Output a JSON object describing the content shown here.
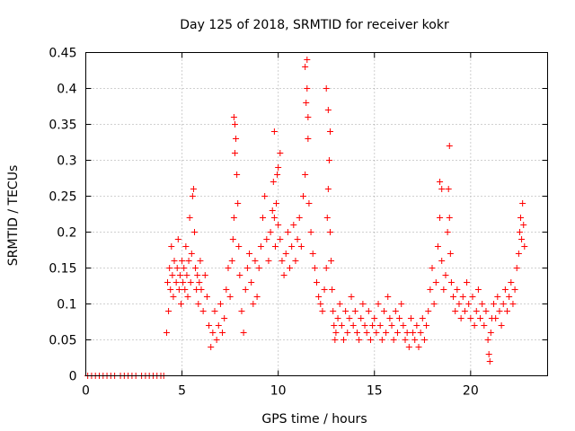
{
  "chart_data": {
    "type": "scatter",
    "title": "Day 125 of 2018, SRMTID for receiver kokr",
    "xlabel": "GPS time / hours",
    "ylabel": "SRMTID / TECUs",
    "xlim": [
      0,
      24
    ],
    "ylim": [
      0,
      0.45
    ],
    "xticks": [
      0,
      5,
      10,
      15,
      20
    ],
    "xtick_labels": [
      "0",
      "5",
      "10",
      "15",
      "20"
    ],
    "yticks": [
      0,
      0.05,
      0.1,
      0.15,
      0.2,
      0.25,
      0.3,
      0.35,
      0.4,
      0.45
    ],
    "ytick_labels": [
      "0",
      "0.05",
      "0.1",
      "0.15",
      "0.2",
      "0.25",
      "0.3",
      "0.35",
      "0.4",
      "0.45"
    ],
    "grid": true,
    "marker": "+",
    "color": "#ff0000",
    "series": [
      {
        "name": "SRMTID",
        "x": [
          0.1,
          0.3,
          0.5,
          0.7,
          0.9,
          1.1,
          1.3,
          1.5,
          1.8,
          2.0,
          2.2,
          2.4,
          2.6,
          2.9,
          3.1,
          3.3,
          3.5,
          3.7,
          3.9,
          4.05,
          4.2,
          4.25,
          4.3,
          4.35,
          4.4,
          4.45,
          4.5,
          4.55,
          4.6,
          4.7,
          4.75,
          4.8,
          4.85,
          4.9,
          4.95,
          5.0,
          5.05,
          5.1,
          5.15,
          5.2,
          5.25,
          5.3,
          5.35,
          5.4,
          5.45,
          5.5,
          5.55,
          5.6,
          5.65,
          5.7,
          5.75,
          5.8,
          5.85,
          5.9,
          5.95,
          6.0,
          6.1,
          6.2,
          6.3,
          6.4,
          6.5,
          6.6,
          6.7,
          6.8,
          6.9,
          7.0,
          7.1,
          7.2,
          7.3,
          7.4,
          7.5,
          7.6,
          7.65,
          7.7,
          7.75,
          7.8,
          7.85,
          7.9,
          7.95,
          8.0,
          8.1,
          8.2,
          8.3,
          8.4,
          8.5,
          8.6,
          8.7,
          8.8,
          8.9,
          9.0,
          9.1,
          9.2,
          9.3,
          9.4,
          9.5,
          9.6,
          9.7,
          9.75,
          9.8,
          9.85,
          9.9,
          9.95,
          10.0,
          10.1,
          10.2,
          10.3,
          10.4,
          10.5,
          10.6,
          10.7,
          10.8,
          10.9,
          11.0,
          11.1,
          11.2,
          11.3,
          11.4,
          11.45,
          11.5,
          11.55,
          11.6,
          11.7,
          11.8,
          11.9,
          12.0,
          12.1,
          12.2,
          12.3,
          12.4,
          12.5,
          12.55,
          12.6,
          12.65,
          12.7,
          12.75,
          12.8,
          12.85,
          12.9,
          12.95,
          13.0,
          13.1,
          13.2,
          13.3,
          13.4,
          13.5,
          13.6,
          13.7,
          13.8,
          13.9,
          14.0,
          14.1,
          14.2,
          14.3,
          14.4,
          14.5,
          14.6,
          14.7,
          14.8,
          14.9,
          15.0,
          15.1,
          15.2,
          15.3,
          15.4,
          15.5,
          15.6,
          15.7,
          15.8,
          15.9,
          16.0,
          16.1,
          16.2,
          16.3,
          16.4,
          16.5,
          16.6,
          16.7,
          16.8,
          16.9,
          17.0,
          17.1,
          17.2,
          17.3,
          17.4,
          17.5,
          17.6,
          17.7,
          17.8,
          17.9,
          18.0,
          18.1,
          18.2,
          18.3,
          18.4,
          18.5,
          18.6,
          18.7,
          18.8,
          18.85,
          18.9,
          18.95,
          19.0,
          19.1,
          19.2,
          19.3,
          19.4,
          19.5,
          19.6,
          19.7,
          19.8,
          19.9,
          20.0,
          20.1,
          20.2,
          20.3,
          20.4,
          20.5,
          20.6,
          20.7,
          20.8,
          20.9,
          20.95,
          21.0,
          21.05,
          21.1,
          21.2,
          21.3,
          21.4,
          21.5,
          21.6,
          21.7,
          21.8,
          21.9,
          22.0,
          22.1,
          22.2,
          22.3,
          22.4,
          22.5,
          22.55,
          22.6,
          22.65,
          22.7,
          22.75,
          22.8,
          9.8,
          10.0,
          10.1,
          11.4,
          11.5,
          11.55,
          12.5,
          12.6,
          12.7,
          7.7,
          7.75,
          18.9,
          18.4,
          18.5
        ],
        "y": [
          0,
          0,
          0,
          0,
          0,
          0,
          0,
          0,
          0,
          0,
          0,
          0,
          0,
          0,
          0,
          0,
          0,
          0,
          0,
          0,
          0.06,
          0.13,
          0.09,
          0.15,
          0.12,
          0.18,
          0.14,
          0.11,
          0.16,
          0.13,
          0.15,
          0.19,
          0.12,
          0.14,
          0.1,
          0.16,
          0.13,
          0.15,
          0.12,
          0.18,
          0.14,
          0.11,
          0.16,
          0.22,
          0.13,
          0.17,
          0.25,
          0.26,
          0.2,
          0.15,
          0.12,
          0.14,
          0.1,
          0.13,
          0.16,
          0.12,
          0.09,
          0.14,
          0.11,
          0.07,
          0.04,
          0.06,
          0.09,
          0.05,
          0.07,
          0.1,
          0.06,
          0.08,
          0.12,
          0.15,
          0.11,
          0.16,
          0.19,
          0.22,
          0.35,
          0.33,
          0.28,
          0.24,
          0.18,
          0.14,
          0.09,
          0.06,
          0.12,
          0.15,
          0.17,
          0.13,
          0.1,
          0.16,
          0.11,
          0.15,
          0.18,
          0.22,
          0.25,
          0.19,
          0.16,
          0.2,
          0.23,
          0.27,
          0.22,
          0.18,
          0.24,
          0.28,
          0.21,
          0.19,
          0.16,
          0.14,
          0.17,
          0.2,
          0.15,
          0.18,
          0.21,
          0.16,
          0.19,
          0.22,
          0.18,
          0.25,
          0.28,
          0.38,
          0.44,
          0.33,
          0.24,
          0.2,
          0.17,
          0.15,
          0.13,
          0.11,
          0.1,
          0.09,
          0.12,
          0.15,
          0.22,
          0.26,
          0.3,
          0.2,
          0.16,
          0.12,
          0.09,
          0.07,
          0.05,
          0.06,
          0.08,
          0.1,
          0.07,
          0.05,
          0.09,
          0.06,
          0.08,
          0.11,
          0.07,
          0.09,
          0.06,
          0.05,
          0.08,
          0.1,
          0.07,
          0.06,
          0.09,
          0.05,
          0.07,
          0.08,
          0.06,
          0.1,
          0.07,
          0.05,
          0.09,
          0.06,
          0.11,
          0.08,
          0.07,
          0.05,
          0.09,
          0.06,
          0.08,
          0.1,
          0.07,
          0.05,
          0.06,
          0.04,
          0.08,
          0.06,
          0.05,
          0.07,
          0.04,
          0.06,
          0.08,
          0.05,
          0.07,
          0.09,
          0.12,
          0.15,
          0.1,
          0.13,
          0.18,
          0.22,
          0.16,
          0.12,
          0.14,
          0.2,
          0.26,
          0.22,
          0.17,
          0.13,
          0.11,
          0.09,
          0.12,
          0.1,
          0.08,
          0.11,
          0.09,
          0.13,
          0.1,
          0.08,
          0.11,
          0.07,
          0.09,
          0.12,
          0.08,
          0.1,
          0.07,
          0.09,
          0.05,
          0.03,
          0.02,
          0.06,
          0.08,
          0.1,
          0.08,
          0.11,
          0.09,
          0.07,
          0.1,
          0.12,
          0.09,
          0.11,
          0.13,
          0.1,
          0.12,
          0.15,
          0.17,
          0.2,
          0.22,
          0.19,
          0.24,
          0.21,
          0.18,
          0.34,
          0.29,
          0.31,
          0.43,
          0.4,
          0.36,
          0.4,
          0.37,
          0.34,
          0.36,
          0.31,
          0.32,
          0.27,
          0.26
        ]
      }
    ]
  }
}
